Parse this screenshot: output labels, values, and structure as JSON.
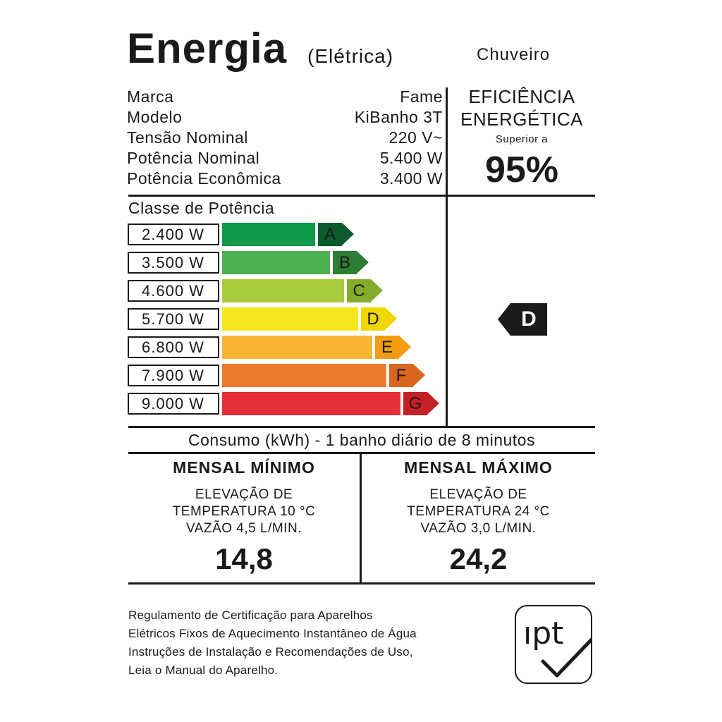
{
  "header": {
    "title": "Energia",
    "subtitle": "(Elétrica)",
    "product": "Chuveiro"
  },
  "specs": [
    {
      "label": "Marca",
      "value": "Fame"
    },
    {
      "label": "Modelo",
      "value": "KiBanho 3T"
    },
    {
      "label": "Tensão Nominal",
      "value": "220 V~"
    },
    {
      "label": "Potência Nominal",
      "value": "5.400 W"
    },
    {
      "label": "Potência Econômica",
      "value": "3.400 W"
    }
  ],
  "efficiency": {
    "title_line1": "EFICIÊNCIA",
    "title_line2": "ENERGÉTICA",
    "superior_label": "Superior a",
    "value": "95%"
  },
  "classes": {
    "title": "Classe de Potência",
    "items": [
      {
        "power": "2.400 W",
        "letter": "A",
        "color": "#0e9a4a",
        "label_color": "#0a5c2c"
      },
      {
        "power": "3.500 W",
        "letter": "B",
        "color": "#4caf50",
        "label_color": "#2e7d32"
      },
      {
        "power": "4.600 W",
        "letter": "C",
        "color": "#a8cc3c",
        "label_color": "#84ad2c"
      },
      {
        "power": "5.700 W",
        "letter": "D",
        "color": "#f5e61e",
        "label_color": "#f0d700"
      },
      {
        "power": "6.800 W",
        "letter": "E",
        "color": "#f7b532",
        "label_color": "#f39c12"
      },
      {
        "power": "7.900 W",
        "letter": "F",
        "color": "#ee7a30",
        "label_color": "#d9661e"
      },
      {
        "power": "9.000 W",
        "letter": "G",
        "color": "#e52f37",
        "label_color": "#c62027"
      }
    ],
    "selected": "D"
  },
  "consumption": {
    "title": "Consumo (kWh) - 1 banho diário de 8 minutos",
    "min": {
      "heading": "MENSAL MÍNIMO",
      "line1": "ELEVAÇÃO DE",
      "line2": "TEMPERATURA 10 °C",
      "line3": "VAZÃO 4,5 L/MIN.",
      "value": "14,8"
    },
    "max": {
      "heading": "MENSAL MÁXIMO",
      "line1": "ELEVAÇÃO DE",
      "line2": "TEMPERATURA 24 °C",
      "line3": "VAZÃO 3,0 L/MIN.",
      "value": "24,2"
    }
  },
  "footer": {
    "lines": [
      "Regulamento de Certificação para Aparelhos",
      "Elétricos Fixos de Aquecimento Instantâneo de Água",
      "Instruções de Instalação e Recomendações de Uso,",
      "Leia o Manual do Aparelho."
    ],
    "logo_text": "ıpt"
  }
}
